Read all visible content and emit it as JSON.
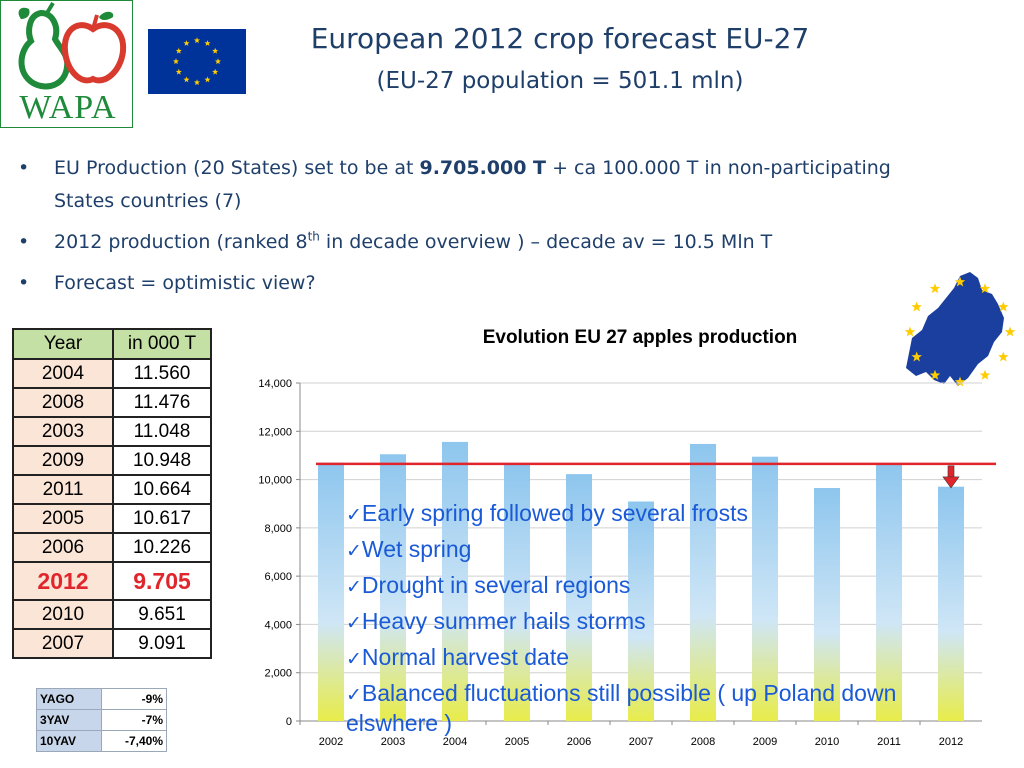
{
  "logo": {
    "text": "WAPA"
  },
  "header": {
    "title": "European 2012 crop forecast EU-27",
    "subtitle": "(EU-27 population  = 501.1 mln)"
  },
  "bullets": {
    "b1_pre": "EU Production (20 States) set to be at ",
    "b1_bold": "9.705.000 T",
    "b1_post": " + ca 100.000 T in non-participating States countries (7)",
    "b2_pre": "2012 production (ranked 8",
    "b2_sup": "th",
    "b2_post": " in decade overview ) – decade av = 10.5 Mln T",
    "b3": "Forecast = optimistic view?"
  },
  "year_table": {
    "headers": [
      "Year",
      "in 000 T"
    ],
    "rows": [
      [
        "2004",
        "11.560"
      ],
      [
        "2008",
        "11.476"
      ],
      [
        "2003",
        "11.048"
      ],
      [
        "2009",
        "10.948"
      ],
      [
        "2011",
        "10.664"
      ],
      [
        "2005",
        "10.617"
      ],
      [
        "2006",
        "10.226"
      ],
      [
        "2012",
        "9.705"
      ],
      [
        "2010",
        "9.651"
      ],
      [
        "2007",
        "9.091"
      ]
    ],
    "highlight_color": "#e0262c"
  },
  "stats_table": {
    "rows": [
      [
        "YAGO",
        "-9%"
      ],
      [
        "3YAV",
        "-7%"
      ],
      [
        "10YAV",
        "-7,40%"
      ]
    ]
  },
  "chart_data": {
    "type": "bar",
    "title": "Evolution EU 27 apples production",
    "categories": [
      "2002",
      "2003",
      "2004",
      "2005",
      "2006",
      "2007",
      "2008",
      "2009",
      "2010",
      "2011",
      "2012"
    ],
    "values": [
      10700,
      11048,
      11560,
      10617,
      10226,
      9091,
      11476,
      10948,
      9651,
      10664,
      9705
    ],
    "ylim": [
      0,
      14000
    ],
    "yticks": [
      "0",
      "2,000",
      "4,000",
      "6,000",
      "8,000",
      "10,000",
      "12,000",
      "14,000"
    ],
    "average_line": 10650,
    "average_line_color": "#e0262c",
    "bar_color_top": "#8ec6ee",
    "bar_color_bottom": "#e8ec4a",
    "grid": true
  },
  "notes": [
    "Early spring followed by several frosts",
    "Wet spring",
    "Drought in several regions",
    "Heavy  summer hails storms",
    "Normal harvest date",
    "Balanced fluctuations still possible ( up Poland down",
    "elswhere )"
  ]
}
